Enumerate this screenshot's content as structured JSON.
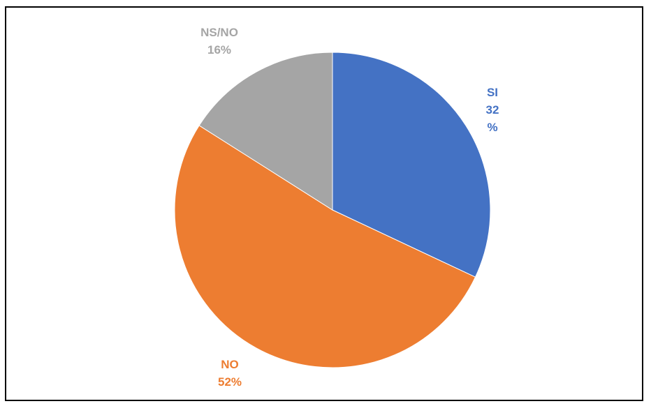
{
  "chart_data": {
    "type": "pie",
    "slices": [
      {
        "category": "SI",
        "value": 32,
        "percent_label": "32",
        "percent_sign": "%",
        "color": "#4472C4"
      },
      {
        "category": "NO",
        "value": 52,
        "percent_label": "52%",
        "color": "#ED7D31"
      },
      {
        "category": "NS/NO",
        "value": 16,
        "percent_label": "16%",
        "color": "#A5A5A5"
      }
    ],
    "start_angle_deg": 0,
    "direction": "clockwise",
    "legend": "none"
  }
}
